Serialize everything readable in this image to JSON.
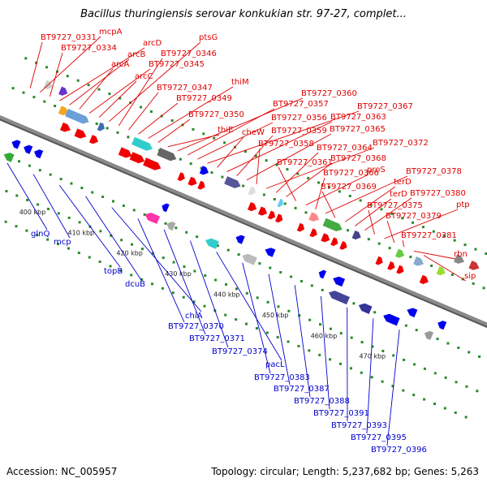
{
  "title": "Bacillus thuringiensis serovar konkukian str. 97-27, complet...",
  "footer": {
    "accession": "Accession: NC_005957",
    "summary": "Topology: circular; Length: 5,237,682 bp; Genes: 5,263"
  },
  "colors": {
    "forward_label": "#dd0000",
    "reverse_label": "#0000cc",
    "backbone": "#8a8a8a"
  },
  "ticks": [
    "400 kbp",
    "410 kbp",
    "420 kbp",
    "430 kbp",
    "440 kbp",
    "450 kbp",
    "460 kbp",
    "470 kbp"
  ],
  "forward_genes": [
    "BT9727_0331",
    "mcpA",
    "BT9727_0334",
    "arcD",
    "arcB",
    "arcA",
    "BT9727_0345",
    "arcC",
    "ptsG",
    "BT9727_0346",
    "BT9727_0347",
    "BT9727_0349",
    "thiM",
    "BT9727_0350",
    "thiE",
    "BT9727_0360",
    "BT9727_0357",
    "BT9727_0356",
    "BT9727_0367",
    "cheW",
    "BT9727_0363",
    "BT9727_0359",
    "BT9727_0365",
    "BT9727_0358",
    "BT9727_0372",
    "BT9727_0364",
    "BT9727_0368",
    "BT9727_0361",
    "proS",
    "BT9727_0366",
    "BT9727_0378",
    "BT9727_0369",
    "terD",
    "terD",
    "BT9727_0380",
    "BT9727_0375",
    "ptp",
    "BT9727_0379",
    "BT9727_0381",
    "rbn",
    "sip"
  ],
  "reverse_genes": [
    "glnQ",
    "mcp",
    "topB",
    "dcuB",
    "chiA",
    "BT9727_0370",
    "BT9727_0371",
    "BT9727_0374",
    "pacL",
    "BT9727_0383",
    "BT9727_0387",
    "BT9727_0388",
    "BT9727_0391",
    "BT9727_0393",
    "BT9727_0395",
    "BT9727_0396"
  ]
}
